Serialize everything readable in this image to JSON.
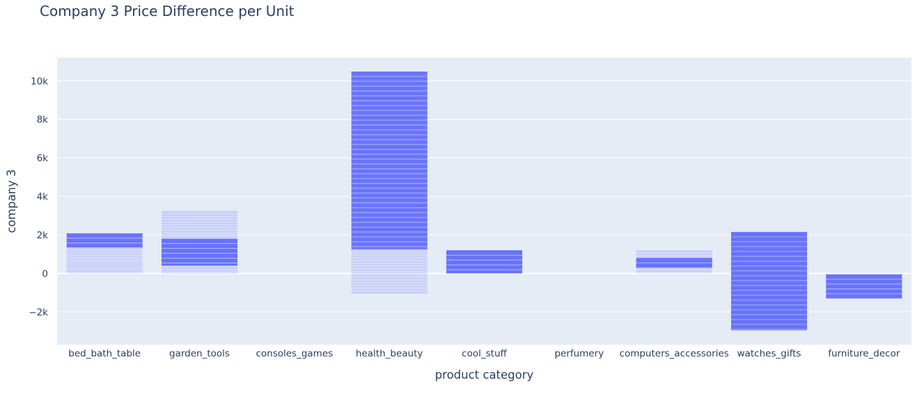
{
  "chart_data": {
    "type": "bar",
    "title": "Company 3 Price Difference per Unit",
    "xlabel": "product category",
    "ylabel": "company 3",
    "categories": [
      "bed_bath_table",
      "garden_tools",
      "consoles_games",
      "health_beauty",
      "cool_stuff",
      "perfumery",
      "computers_accessories",
      "watches_gifts",
      "furniture_decor"
    ],
    "ylim": [
      -3700,
      11200
    ],
    "yticks": [
      -2000,
      0,
      2000,
      4000,
      6000,
      8000,
      10000
    ],
    "ytick_labels": [
      "−2k",
      "0",
      "2k",
      "4k",
      "6k",
      "8k",
      "10k"
    ],
    "grid": true,
    "bar_color": "#636efa",
    "background": "#e5ecf6",
    "stacks": [
      {
        "category": "bed_bath_table",
        "solid_range": [
          1350,
          2080
        ],
        "light_range": [
          0,
          1350
        ],
        "negative_light": 0
      },
      {
        "category": "garden_tools",
        "solid_range": [
          400,
          1800
        ],
        "light_range": [
          0,
          3250
        ],
        "negative_light": 0
      },
      {
        "category": "consoles_games",
        "solid_range": [
          0,
          0
        ],
        "light_range": [
          0,
          0
        ],
        "negative_light": 0
      },
      {
        "category": "health_beauty",
        "solid_range": [
          1250,
          10480
        ],
        "light_range": [
          -1050,
          1250
        ],
        "negative_light": 0
      },
      {
        "category": "cool_stuff",
        "solid_range": [
          0,
          1200
        ],
        "light_range": [
          0,
          1200
        ],
        "negative_light": 0
      },
      {
        "category": "perfumery",
        "solid_range": [
          0,
          0
        ],
        "light_range": [
          0,
          0
        ],
        "negative_light": 0
      },
      {
        "category": "computers_accessories",
        "solid_range": [
          300,
          800
        ],
        "light_range": [
          0,
          1200
        ],
        "negative_light": 0
      },
      {
        "category": "watches_gifts",
        "solid_range": [
          -2950,
          2150
        ],
        "light_range": [
          -2950,
          2150
        ],
        "negative_light": 0
      },
      {
        "category": "furniture_decor",
        "solid_range": [
          -1300,
          -50
        ],
        "light_range": [
          -1300,
          -50
        ],
        "negative_light": 0
      }
    ]
  }
}
